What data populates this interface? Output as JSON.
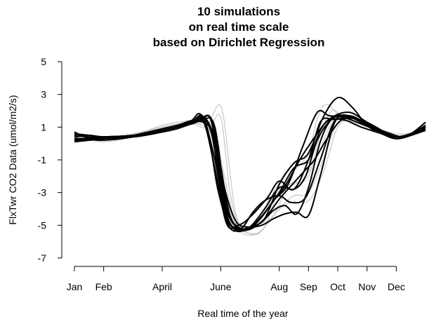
{
  "chart_data": {
    "type": "line",
    "title": [
      "10 simulations",
      "on real time scale",
      "based on Dirichlet Regression"
    ],
    "xlabel": "Real time of the year",
    "ylabel": "FlxTwr CO2 Data (umol/m2/s)",
    "xlim": [
      0,
      12
    ],
    "ylim": [
      -7,
      5
    ],
    "yticks": [
      5,
      3,
      1,
      -1,
      -3,
      -5,
      -7
    ],
    "xticks": [
      {
        "label": "Jan",
        "x": 0.0
      },
      {
        "label": "Feb",
        "x": 1.0
      },
      {
        "label": "April",
        "x": 3.0
      },
      {
        "label": "June",
        "x": 5.0
      },
      {
        "label": "Aug",
        "x": 7.0
      },
      {
        "label": "Sep",
        "x": 8.0
      },
      {
        "label": "Oct",
        "x": 9.0
      },
      {
        "label": "Nov",
        "x": 10.0
      },
      {
        "label": "Dec",
        "x": 11.0
      }
    ],
    "gray_series": [
      {
        "x": [
          0,
          1,
          2,
          3,
          4,
          4.5,
          5.0,
          5.3,
          5.5,
          5.8,
          6.2,
          6.8,
          7.2,
          7.6,
          8.0,
          8.3,
          8.6,
          9.0,
          9.5,
          10.2,
          11.0,
          11.6,
          12.0
        ],
        "y": [
          0.4,
          0.3,
          0.5,
          0.9,
          1.2,
          1.0,
          2.3,
          -1.5,
          -4.2,
          -5.2,
          -4.8,
          -3.0,
          -1.8,
          -1.5,
          -0.5,
          1.5,
          2.4,
          1.8,
          1.2,
          0.8,
          0.5,
          0.6,
          1.0
        ]
      },
      {
        "x": [
          0,
          1,
          2,
          3,
          4,
          4.6,
          5.0,
          5.3,
          5.6,
          6.0,
          6.5,
          7.0,
          7.5,
          8.0,
          8.4,
          8.8,
          9.2,
          10.0,
          11.0,
          11.6,
          12.0
        ],
        "y": [
          0.5,
          0.2,
          0.5,
          1.0,
          1.3,
          1.0,
          1.6,
          -2.8,
          -4.9,
          -5.5,
          -5.1,
          -2.8,
          -2.5,
          -2.0,
          0.5,
          2.0,
          1.6,
          1.0,
          0.4,
          0.6,
          1.1
        ]
      },
      {
        "x": [
          0,
          1,
          2,
          3,
          4,
          4.5,
          4.9,
          5.2,
          5.5,
          5.9,
          6.4,
          7.0,
          7.5,
          8.0,
          8.5,
          9.0,
          9.6,
          10.3,
          11.0,
          11.6,
          12.0
        ],
        "y": [
          0.3,
          0.2,
          0.5,
          1.1,
          1.4,
          1.2,
          0.2,
          -3.5,
          -5.0,
          -5.6,
          -5.3,
          -4.0,
          -3.2,
          -3.0,
          -1.0,
          1.2,
          1.4,
          0.9,
          0.5,
          0.7,
          1.2
        ]
      },
      {
        "x": [
          0,
          1,
          2,
          3,
          4,
          4.6,
          5.0,
          5.4,
          5.8,
          6.3,
          6.9,
          7.4,
          8.0,
          8.5,
          9.0,
          9.5,
          10.2,
          11.0,
          11.6,
          12.0
        ],
        "y": [
          0.4,
          0.1,
          0.4,
          0.9,
          1.2,
          1.0,
          -1.0,
          -4.2,
          -5.3,
          -5.5,
          -4.2,
          -3.6,
          -3.5,
          -1.8,
          1.0,
          1.4,
          1.0,
          0.6,
          0.7,
          1.1
        ]
      },
      {
        "x": [
          0,
          1,
          2,
          3,
          4,
          4.5,
          4.9,
          5.3,
          5.7,
          6.2,
          6.8,
          7.3,
          7.8,
          8.3,
          8.8,
          9.3,
          10.0,
          11.0,
          11.6,
          12.0
        ],
        "y": [
          0.2,
          0.3,
          0.6,
          1.0,
          1.3,
          1.1,
          -0.5,
          -4.0,
          -5.2,
          -5.0,
          -4.4,
          -2.6,
          -2.2,
          -0.8,
          1.3,
          1.7,
          1.1,
          0.5,
          0.6,
          1.0
        ]
      }
    ],
    "black_series": [
      {
        "x": [
          0,
          0.5,
          1,
          2,
          3,
          3.5,
          4,
          4.4,
          4.8,
          5.2,
          5.6,
          6.0,
          6.5,
          7.0,
          7.5,
          8.0,
          8.5,
          9.0,
          9.5,
          10.0,
          10.5,
          11.0,
          11.5,
          12.0
        ],
        "y": [
          0.7,
          0.3,
          0.2,
          0.4,
          0.8,
          1.0,
          1.3,
          1.6,
          -1.0,
          -4.5,
          -5.2,
          -5.1,
          -4.6,
          -2.5,
          -1.2,
          -0.6,
          1.6,
          2.8,
          2.2,
          1.1,
          0.6,
          0.3,
          0.6,
          1.3
        ]
      },
      {
        "x": [
          0,
          0.5,
          1,
          2,
          3,
          3.5,
          4,
          4.3,
          4.7,
          5.1,
          5.5,
          5.9,
          6.3,
          6.8,
          7.3,
          7.8,
          8.3,
          8.7,
          9.2,
          9.8,
          10.5,
          11.0,
          11.5,
          12.0
        ],
        "y": [
          0.5,
          0.4,
          0.3,
          0.4,
          0.8,
          1.0,
          1.4,
          1.8,
          0.5,
          -4.0,
          -5.3,
          -5.2,
          -4.7,
          -3.5,
          -2.5,
          -0.2,
          1.9,
          1.7,
          1.6,
          1.2,
          0.7,
          0.4,
          0.6,
          1.1
        ]
      },
      {
        "x": [
          0,
          0.5,
          1,
          2,
          3,
          3.5,
          4,
          4.4,
          4.8,
          5.2,
          5.6,
          6.0,
          6.6,
          7.0,
          7.5,
          8.0,
          8.4,
          8.8,
          9.3,
          9.8,
          10.5,
          11.0,
          11.5,
          12.0
        ],
        "y": [
          0.4,
          0.5,
          0.4,
          0.4,
          0.7,
          0.9,
          1.2,
          1.4,
          -1.5,
          -4.9,
          -5.0,
          -4.5,
          -3.3,
          -2.3,
          -2.8,
          -1.0,
          1.3,
          1.5,
          1.4,
          1.0,
          0.6,
          0.3,
          0.5,
          0.9
        ]
      },
      {
        "x": [
          0,
          0.5,
          1,
          2,
          3,
          3.5,
          4,
          4.5,
          4.9,
          5.3,
          5.7,
          6.1,
          6.6,
          7.0,
          7.5,
          8.0,
          8.4,
          8.8,
          9.4,
          10.0,
          10.6,
          11.0,
          11.5,
          12.0
        ],
        "y": [
          0.3,
          0.3,
          0.4,
          0.5,
          0.9,
          1.1,
          1.4,
          1.5,
          -0.5,
          -4.3,
          -5.2,
          -5.0,
          -4.0,
          -3.0,
          -1.5,
          -1.0,
          0.8,
          1.6,
          1.9,
          1.3,
          0.7,
          0.3,
          0.5,
          0.8
        ]
      },
      {
        "x": [
          0,
          0.5,
          1,
          2,
          3,
          3.5,
          4,
          4.4,
          4.7,
          5.1,
          5.5,
          5.9,
          6.4,
          6.8,
          7.2,
          7.6,
          8.0,
          8.4,
          8.8,
          9.3,
          9.9,
          10.5,
          11.0,
          11.5,
          12.0
        ],
        "y": [
          0.2,
          0.2,
          0.3,
          0.5,
          0.9,
          1.1,
          1.4,
          1.6,
          1.2,
          -3.5,
          -5.0,
          -5.3,
          -4.8,
          -4.1,
          -3.8,
          -4.3,
          -2.7,
          0.1,
          1.5,
          1.7,
          1.2,
          0.7,
          0.4,
          0.6,
          1.0
        ]
      },
      {
        "x": [
          0,
          0.5,
          1,
          2,
          3,
          3.5,
          4,
          4.4,
          4.8,
          5.2,
          5.6,
          6.0,
          6.5,
          7.0,
          7.5,
          7.9,
          8.3,
          8.8,
          9.3,
          9.9,
          10.5,
          11.0,
          11.5,
          12.0
        ],
        "y": [
          0.5,
          0.4,
          0.4,
          0.5,
          0.9,
          1.1,
          1.3,
          1.6,
          0.0,
          -4.3,
          -5.3,
          -5.1,
          -4.0,
          -2.7,
          -2.8,
          -2.0,
          0.2,
          1.5,
          1.7,
          1.3,
          0.7,
          0.4,
          0.6,
          1.0
        ]
      },
      {
        "x": [
          0,
          0.5,
          1,
          2,
          3,
          3.5,
          4,
          4.3,
          4.7,
          5.1,
          5.5,
          5.9,
          6.4,
          6.8,
          7.2,
          7.6,
          8.0,
          8.4,
          8.9,
          9.4,
          10.0,
          10.6,
          11.0,
          11.5,
          12.0
        ],
        "y": [
          0.1,
          0.2,
          0.3,
          0.5,
          0.8,
          1.0,
          1.3,
          1.5,
          1.4,
          -2.5,
          -4.7,
          -5.1,
          -5.0,
          -4.6,
          -4.3,
          -4.2,
          -4.4,
          -2.0,
          1.3,
          1.7,
          1.2,
          0.7,
          0.4,
          0.6,
          1.0
        ]
      },
      {
        "x": [
          0,
          0.5,
          1,
          2,
          3,
          3.5,
          4,
          4.4,
          4.8,
          5.2,
          5.6,
          6.0,
          6.5,
          7.0,
          7.4,
          7.8,
          8.2,
          8.6,
          9.1,
          9.6,
          10.2,
          10.8,
          11.2,
          11.6,
          12.0
        ],
        "y": [
          0.6,
          0.5,
          0.4,
          0.4,
          0.7,
          0.9,
          1.2,
          1.3,
          0.3,
          -4.0,
          -5.1,
          -5.2,
          -4.6,
          -3.4,
          -2.6,
          -1.8,
          -1.0,
          0.2,
          1.4,
          1.5,
          1.0,
          0.6,
          0.4,
          0.6,
          1.0
        ]
      },
      {
        "x": [
          0,
          0.5,
          1,
          2,
          3,
          3.5,
          4,
          4.5,
          4.9,
          5.3,
          5.7,
          6.1,
          6.5,
          7.0,
          7.4,
          7.9,
          8.4,
          8.9,
          9.4,
          10.0,
          10.6,
          11.0,
          11.5,
          12.0
        ],
        "y": [
          0.3,
          0.3,
          0.4,
          0.5,
          0.8,
          1.0,
          1.2,
          1.1,
          -2.8,
          -5.1,
          -5.2,
          -4.2,
          -3.5,
          -3.2,
          -3.6,
          -3.3,
          -1.0,
          1.4,
          1.6,
          1.1,
          0.6,
          0.3,
          0.5,
          0.9
        ]
      },
      {
        "x": [
          0,
          0.5,
          1,
          2,
          3,
          3.5,
          4,
          4.4,
          4.8,
          5.2,
          5.6,
          6.0,
          6.4,
          6.8,
          7.2,
          7.7,
          8.1,
          8.6,
          9.0,
          9.5,
          10.1,
          10.6,
          11.0,
          11.5,
          12.0
        ],
        "y": [
          0.2,
          0.3,
          0.3,
          0.5,
          0.8,
          1.0,
          1.3,
          1.5,
          1.0,
          -3.9,
          -5.2,
          -5.2,
          -4.5,
          -3.5,
          -2.6,
          -1.0,
          0.1,
          1.3,
          1.5,
          1.6,
          1.2,
          0.7,
          0.4,
          0.6,
          1.1
        ]
      }
    ]
  }
}
